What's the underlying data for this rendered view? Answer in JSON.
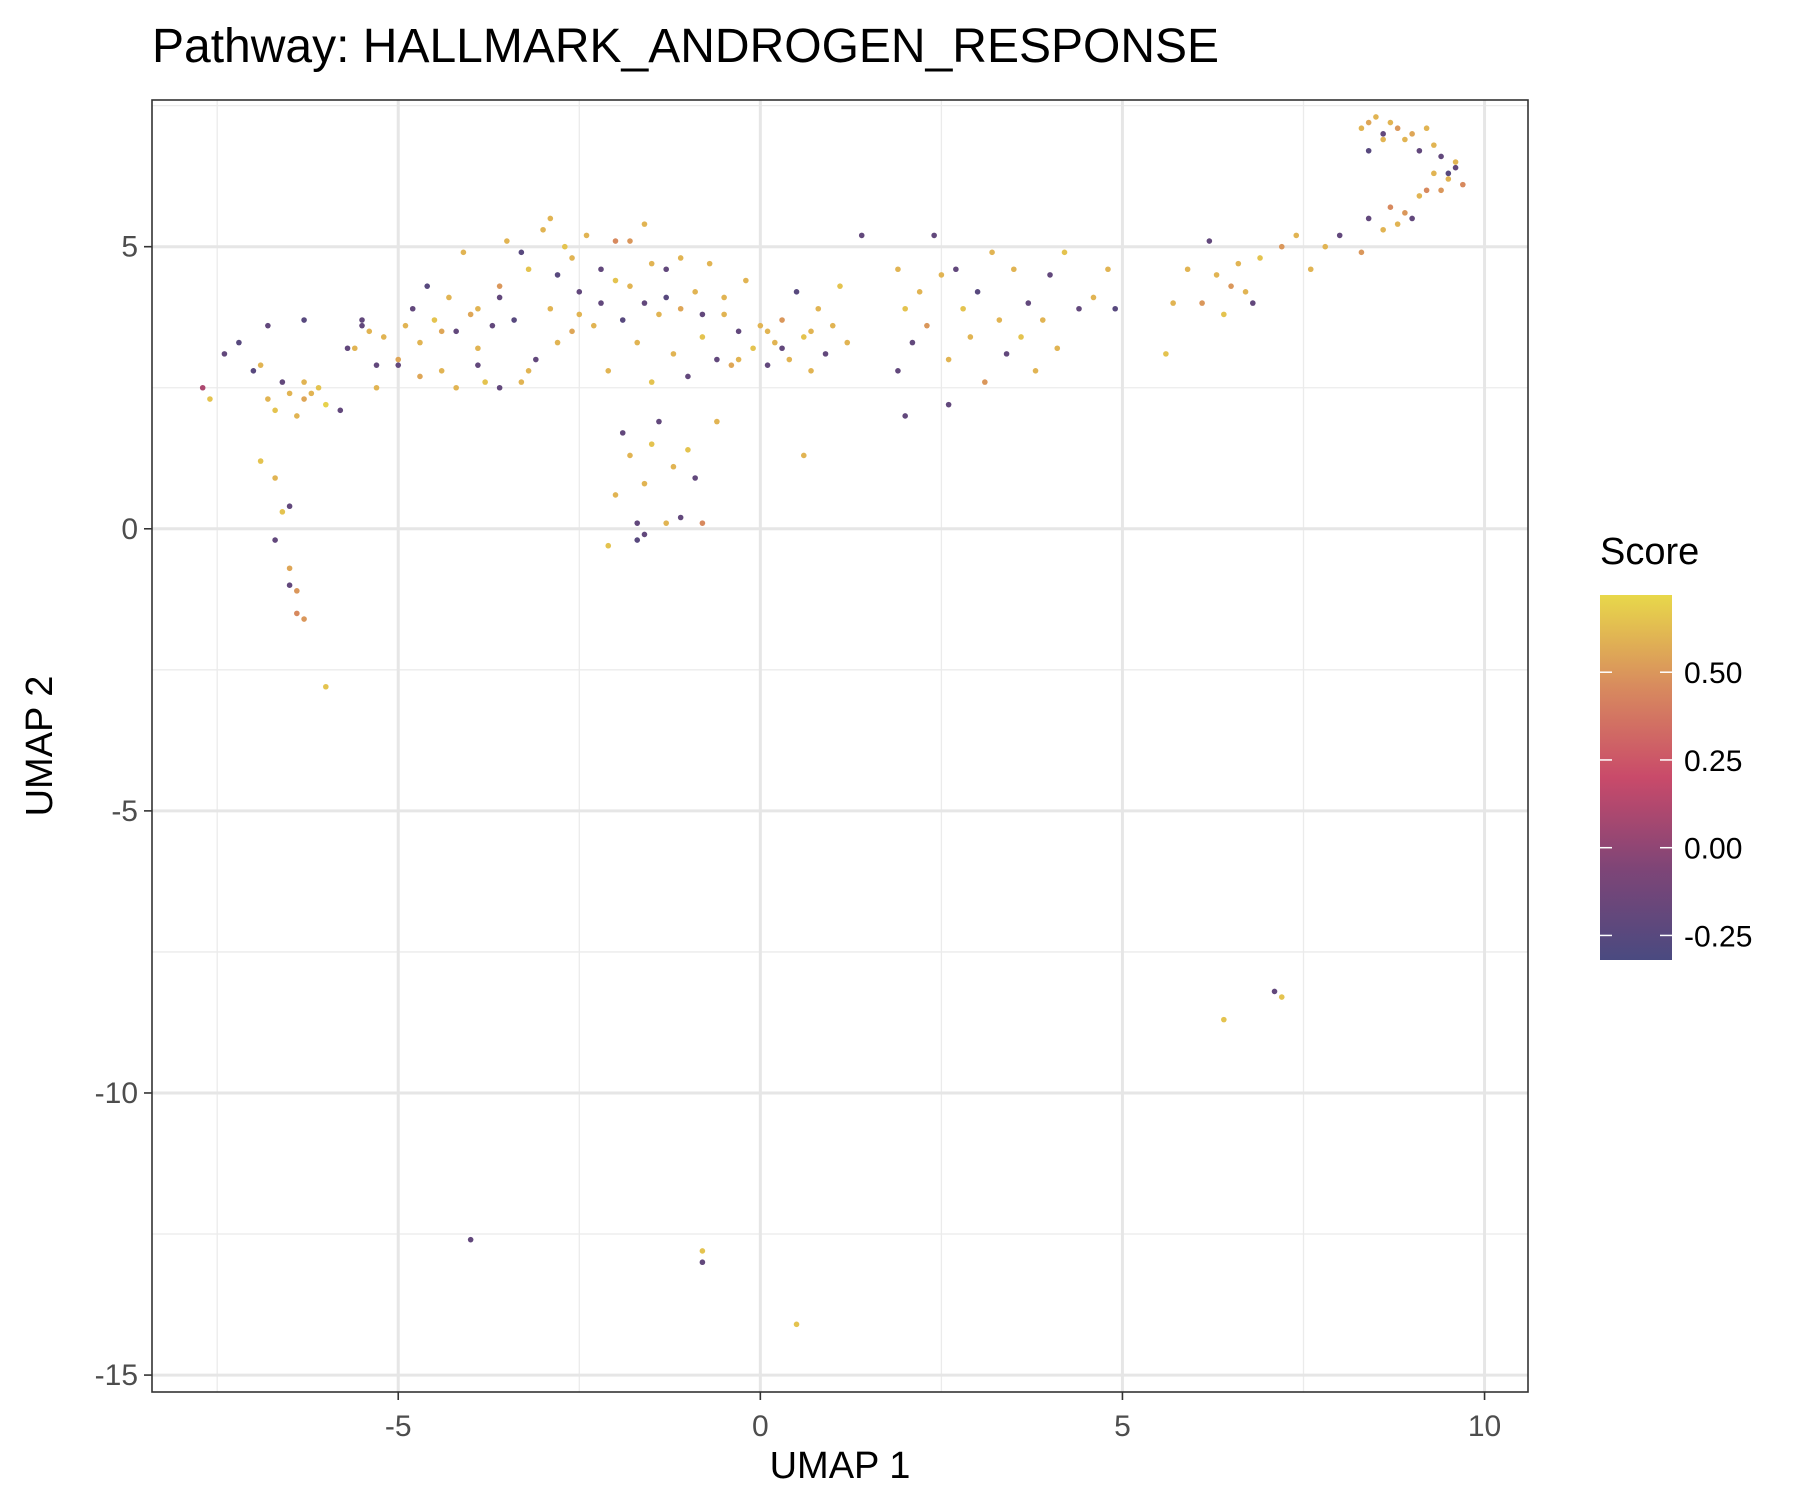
{
  "chart_data": {
    "type": "scatter",
    "title": "Pathway: HALLMARK_ANDROGEN_RESPONSE",
    "xlabel": "UMAP 1",
    "ylabel": "UMAP 2",
    "xlim": [
      -8.4,
      10.6
    ],
    "ylim": [
      -15.3,
      7.6
    ],
    "x_ticks": [
      -5,
      0,
      5,
      10
    ],
    "x_tick_labels": [
      "-5",
      "0",
      "5",
      "10"
    ],
    "y_ticks": [
      -15,
      -10,
      -5,
      0,
      5
    ],
    "y_tick_labels": [
      "-15",
      "-10",
      "-5",
      "0",
      "5"
    ],
    "grid": true,
    "legend": {
      "title": "Score",
      "position": "right",
      "ticks": [
        -0.25,
        0.0,
        0.25,
        0.5
      ],
      "tick_labels": [
        "-0.25",
        "0.00",
        "0.25",
        "0.50"
      ],
      "range": [
        -0.32,
        0.72
      ],
      "colors": [
        "#4a4a80",
        "#7e4577",
        "#c94a6a",
        "#d88b5e",
        "#e8d84a"
      ]
    },
    "series": [
      {
        "points": [
          [
            -7.7,
            2.5,
            0.1
          ],
          [
            -7.6,
            2.3,
            0.65
          ],
          [
            -7.4,
            3.1,
            -0.2
          ],
          [
            -7.2,
            3.3,
            -0.25
          ],
          [
            -7.0,
            2.8,
            -0.25
          ],
          [
            -6.9,
            2.9,
            0.6
          ],
          [
            -6.8,
            2.3,
            0.6
          ],
          [
            -6.7,
            2.1,
            0.65
          ],
          [
            -6.6,
            2.6,
            -0.2
          ],
          [
            -6.5,
            2.4,
            0.6
          ],
          [
            -6.4,
            2.0,
            0.6
          ],
          [
            -6.3,
            2.3,
            0.55
          ],
          [
            -6.2,
            2.4,
            0.6
          ],
          [
            -6.1,
            2.5,
            0.65
          ],
          [
            -6.0,
            2.2,
            0.7
          ],
          [
            -5.8,
            2.1,
            -0.2
          ],
          [
            -6.8,
            3.6,
            -0.2
          ],
          [
            -6.3,
            3.7,
            -0.25
          ],
          [
            -6.9,
            1.2,
            0.65
          ],
          [
            -6.7,
            0.9,
            0.6
          ],
          [
            -6.5,
            0.4,
            -0.2
          ],
          [
            -6.6,
            0.3,
            0.65
          ],
          [
            -6.7,
            -0.2,
            -0.2
          ],
          [
            -6.5,
            -0.7,
            0.55
          ],
          [
            -6.5,
            -1.0,
            -0.2
          ],
          [
            -6.4,
            -1.1,
            0.5
          ],
          [
            -6.4,
            -1.5,
            0.45
          ],
          [
            -6.3,
            -1.6,
            0.5
          ],
          [
            -6.0,
            -2.8,
            0.65
          ],
          [
            -5.7,
            3.2,
            -0.2
          ],
          [
            -5.5,
            3.7,
            -0.2
          ],
          [
            -5.4,
            3.5,
            0.6
          ],
          [
            -5.3,
            2.9,
            -0.2
          ],
          [
            -5.2,
            3.4,
            0.6
          ],
          [
            -5.0,
            3.0,
            0.55
          ],
          [
            -4.9,
            3.6,
            0.6
          ],
          [
            -4.8,
            3.9,
            -0.2
          ],
          [
            -4.7,
            3.3,
            0.6
          ],
          [
            -4.6,
            4.3,
            -0.25
          ],
          [
            -4.5,
            3.7,
            0.65
          ],
          [
            -4.4,
            2.8,
            0.6
          ],
          [
            -4.3,
            4.1,
            0.6
          ],
          [
            -4.2,
            3.5,
            -0.2
          ],
          [
            -4.1,
            4.9,
            0.6
          ],
          [
            -4.0,
            3.8,
            0.55
          ],
          [
            -3.9,
            3.2,
            0.6
          ],
          [
            -3.8,
            2.6,
            0.65
          ],
          [
            -3.7,
            3.6,
            -0.2
          ],
          [
            -3.6,
            4.3,
            0.5
          ],
          [
            -3.5,
            5.1,
            0.6
          ],
          [
            -3.4,
            3.7,
            -0.25
          ],
          [
            -3.3,
            2.6,
            0.6
          ],
          [
            -3.2,
            4.6,
            0.65
          ],
          [
            -3.1,
            3.0,
            -0.2
          ],
          [
            -3.0,
            5.3,
            0.6
          ],
          [
            -2.9,
            3.9,
            0.6
          ],
          [
            -2.8,
            4.5,
            -0.25
          ],
          [
            -2.7,
            5.0,
            0.65
          ],
          [
            -2.6,
            3.5,
            0.55
          ],
          [
            -2.5,
            4.2,
            -0.2
          ],
          [
            -2.4,
            5.2,
            0.6
          ],
          [
            -2.3,
            3.6,
            0.6
          ],
          [
            -2.2,
            4.0,
            -0.2
          ],
          [
            -2.1,
            2.8,
            0.6
          ],
          [
            -2.0,
            4.4,
            0.65
          ],
          [
            -1.9,
            3.7,
            -0.25
          ],
          [
            -1.8,
            5.1,
            0.5
          ],
          [
            -1.7,
            3.3,
            0.6
          ],
          [
            -1.6,
            4.0,
            -0.2
          ],
          [
            -1.5,
            2.6,
            0.65
          ],
          [
            -1.4,
            3.8,
            0.6
          ],
          [
            -1.3,
            4.6,
            -0.2
          ],
          [
            -1.2,
            3.1,
            0.6
          ],
          [
            -1.1,
            3.9,
            0.55
          ],
          [
            -1.0,
            2.7,
            -0.2
          ],
          [
            -0.9,
            4.2,
            0.6
          ],
          [
            -0.8,
            3.4,
            0.65
          ],
          [
            -0.7,
            4.7,
            0.6
          ],
          [
            -0.6,
            3.0,
            -0.2
          ],
          [
            -0.5,
            3.8,
            0.6
          ],
          [
            -0.4,
            2.9,
            0.55
          ],
          [
            -0.3,
            3.5,
            -0.2
          ],
          [
            -0.2,
            4.4,
            0.6
          ],
          [
            -0.1,
            3.2,
            0.65
          ],
          [
            0.0,
            3.6,
            0.6
          ],
          [
            0.1,
            2.9,
            -0.2
          ],
          [
            0.2,
            3.3,
            0.6
          ],
          [
            0.3,
            3.7,
            0.5
          ],
          [
            0.4,
            3.0,
            0.6
          ],
          [
            0.5,
            4.2,
            -0.25
          ],
          [
            0.6,
            3.4,
            0.65
          ],
          [
            0.7,
            2.8,
            0.6
          ],
          [
            0.8,
            3.9,
            0.6
          ],
          [
            0.9,
            3.1,
            -0.2
          ],
          [
            1.0,
            3.6,
            0.6
          ],
          [
            1.1,
            4.3,
            0.65
          ],
          [
            1.2,
            3.3,
            0.6
          ],
          [
            -2.1,
            -0.3,
            0.65
          ],
          [
            -2.0,
            0.6,
            0.6
          ],
          [
            -1.9,
            1.7,
            -0.2
          ],
          [
            -1.8,
            1.3,
            0.6
          ],
          [
            -1.7,
            0.1,
            -0.2
          ],
          [
            -1.6,
            0.8,
            0.6
          ],
          [
            -1.5,
            1.5,
            0.65
          ],
          [
            -1.4,
            1.9,
            -0.2
          ],
          [
            -1.3,
            0.1,
            0.6
          ],
          [
            -1.2,
            1.1,
            0.6
          ],
          [
            -1.1,
            0.2,
            -0.2
          ],
          [
            -1.0,
            1.4,
            0.65
          ],
          [
            -0.9,
            0.9,
            -0.2
          ],
          [
            -0.8,
            0.1,
            0.45
          ],
          [
            -0.6,
            1.9,
            0.6
          ],
          [
            -1.6,
            -0.1,
            -0.2
          ],
          [
            -1.7,
            -0.2,
            -0.25
          ],
          [
            0.6,
            1.3,
            0.6
          ],
          [
            1.4,
            5.2,
            -0.2
          ],
          [
            1.9,
            4.6,
            0.6
          ],
          [
            2.0,
            3.9,
            0.65
          ],
          [
            2.1,
            3.3,
            -0.2
          ],
          [
            2.2,
            4.2,
            0.6
          ],
          [
            2.3,
            3.6,
            0.5
          ],
          [
            2.4,
            5.2,
            -0.2
          ],
          [
            2.5,
            4.5,
            0.6
          ],
          [
            2.6,
            3.0,
            0.6
          ],
          [
            2.7,
            4.6,
            -0.2
          ],
          [
            2.8,
            3.9,
            0.65
          ],
          [
            2.9,
            3.4,
            0.6
          ],
          [
            3.0,
            4.2,
            -0.25
          ],
          [
            3.1,
            2.6,
            0.5
          ],
          [
            3.2,
            4.9,
            0.6
          ],
          [
            3.3,
            3.7,
            0.6
          ],
          [
            3.4,
            3.1,
            -0.2
          ],
          [
            3.5,
            4.6,
            0.6
          ],
          [
            3.6,
            3.4,
            0.65
          ],
          [
            3.7,
            4.0,
            -0.2
          ],
          [
            3.8,
            2.8,
            0.6
          ],
          [
            3.9,
            3.7,
            0.6
          ],
          [
            4.0,
            4.5,
            -0.2
          ],
          [
            4.1,
            3.2,
            0.6
          ],
          [
            4.2,
            4.9,
            0.65
          ],
          [
            4.4,
            3.9,
            -0.2
          ],
          [
            4.6,
            4.1,
            0.6
          ],
          [
            4.8,
            4.6,
            0.6
          ],
          [
            4.9,
            3.9,
            -0.25
          ],
          [
            2.0,
            2.0,
            -0.2
          ],
          [
            2.6,
            2.2,
            -0.2
          ],
          [
            1.9,
            2.8,
            -0.2
          ],
          [
            5.6,
            3.1,
            0.65
          ],
          [
            5.7,
            4.0,
            0.6
          ],
          [
            5.9,
            4.6,
            0.6
          ],
          [
            6.1,
            4.0,
            0.5
          ],
          [
            6.2,
            5.1,
            -0.2
          ],
          [
            6.3,
            4.5,
            0.6
          ],
          [
            6.4,
            3.8,
            0.65
          ],
          [
            6.5,
            4.3,
            0.5
          ],
          [
            6.6,
            4.7,
            0.6
          ],
          [
            6.7,
            4.2,
            0.6
          ],
          [
            6.8,
            4.0,
            -0.2
          ],
          [
            6.9,
            4.8,
            0.65
          ],
          [
            7.2,
            5.0,
            0.5
          ],
          [
            7.4,
            5.2,
            0.6
          ],
          [
            7.6,
            4.6,
            0.6
          ],
          [
            7.8,
            5.0,
            0.6
          ],
          [
            8.0,
            5.2,
            -0.2
          ],
          [
            8.3,
            4.9,
            0.5
          ],
          [
            8.4,
            5.5,
            -0.2
          ],
          [
            8.6,
            5.3,
            0.6
          ],
          [
            8.7,
            5.7,
            0.45
          ],
          [
            8.8,
            5.4,
            0.6
          ],
          [
            8.9,
            5.6,
            0.5
          ],
          [
            9.0,
            5.5,
            -0.2
          ],
          [
            9.1,
            5.9,
            0.6
          ],
          [
            9.2,
            6.0,
            0.45
          ],
          [
            9.3,
            6.3,
            0.6
          ],
          [
            9.4,
            6.0,
            0.5
          ],
          [
            9.5,
            6.2,
            0.6
          ],
          [
            9.6,
            6.4,
            -0.2
          ],
          [
            9.7,
            6.1,
            0.45
          ],
          [
            9.6,
            6.5,
            0.6
          ],
          [
            9.5,
            6.3,
            -0.25
          ],
          [
            8.3,
            7.1,
            0.6
          ],
          [
            8.4,
            7.2,
            0.55
          ],
          [
            8.5,
            7.3,
            0.6
          ],
          [
            8.6,
            7.0,
            -0.2
          ],
          [
            8.7,
            7.2,
            0.6
          ],
          [
            8.8,
            7.1,
            0.5
          ],
          [
            8.9,
            6.9,
            0.6
          ],
          [
            9.0,
            7.0,
            0.55
          ],
          [
            9.1,
            6.7,
            -0.2
          ],
          [
            9.2,
            7.1,
            0.6
          ],
          [
            9.3,
            6.8,
            0.6
          ],
          [
            9.4,
            6.6,
            -0.2
          ],
          [
            8.4,
            6.7,
            -0.25
          ],
          [
            8.6,
            6.9,
            0.6
          ],
          [
            -6.3,
            2.6,
            0.6
          ],
          [
            -5.6,
            3.2,
            0.6
          ],
          [
            -5.3,
            2.5,
            0.6
          ],
          [
            -5.0,
            2.9,
            -0.2
          ],
          [
            -4.7,
            2.7,
            0.55
          ],
          [
            -4.2,
            2.5,
            0.6
          ],
          [
            -3.9,
            2.9,
            -0.2
          ],
          [
            -3.6,
            2.5,
            -0.2
          ],
          [
            -3.2,
            2.8,
            0.6
          ],
          [
            -2.8,
            3.3,
            0.6
          ],
          [
            -2.5,
            3.8,
            0.6
          ],
          [
            -2.2,
            4.6,
            -0.2
          ],
          [
            -2.0,
            5.1,
            0.45
          ],
          [
            -1.8,
            4.3,
            0.6
          ],
          [
            -1.5,
            4.7,
            0.6
          ],
          [
            -1.3,
            4.1,
            -0.25
          ],
          [
            -1.1,
            4.8,
            0.6
          ],
          [
            -0.8,
            3.8,
            -0.2
          ],
          [
            -0.5,
            4.1,
            0.6
          ],
          [
            -0.3,
            3.0,
            0.6
          ],
          [
            0.1,
            3.5,
            0.6
          ],
          [
            0.3,
            3.2,
            -0.2
          ],
          [
            0.7,
            3.5,
            0.6
          ],
          [
            -3.3,
            4.9,
            -0.25
          ],
          [
            -2.9,
            5.5,
            0.6
          ],
          [
            -2.6,
            4.8,
            0.6
          ],
          [
            -1.6,
            5.4,
            0.6
          ],
          [
            -3.6,
            4.1,
            -0.2
          ],
          [
            -3.9,
            3.9,
            0.6
          ],
          [
            -4.4,
            3.5,
            0.55
          ],
          [
            -5.5,
            3.6,
            -0.2
          ],
          [
            -4.0,
            -12.6,
            -0.2
          ],
          [
            -0.8,
            -12.8,
            0.65
          ],
          [
            -0.8,
            -13.0,
            -0.2
          ],
          [
            0.5,
            -14.1,
            0.65
          ],
          [
            6.4,
            -8.7,
            0.65
          ],
          [
            7.1,
            -8.2,
            -0.2
          ],
          [
            7.2,
            -8.3,
            0.65
          ]
        ]
      }
    ]
  }
}
